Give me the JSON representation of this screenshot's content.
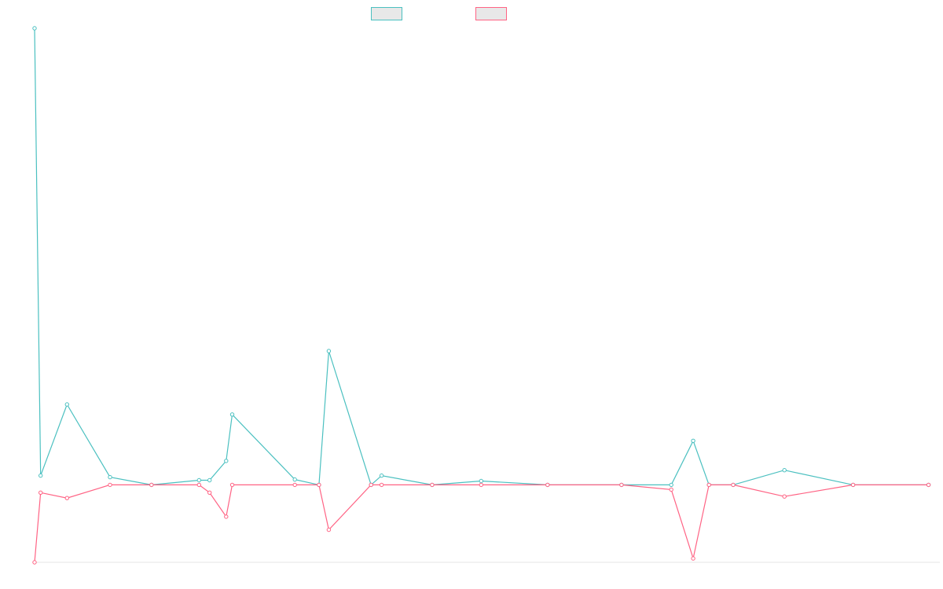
{
  "chart_data": {
    "type": "line",
    "title": "",
    "xlabel": "",
    "ylabel": "",
    "ylim": [
      -100,
      590
    ],
    "xlim": [
      0,
      120
    ],
    "grid": false,
    "legend": {
      "placement": "top-center",
      "labels": [
        "",
        ""
      ]
    },
    "x": [
      0,
      0.8,
      4.3,
      10.0,
      15.5,
      21.8,
      23.2,
      25.4,
      26.2,
      34.5,
      37.7,
      39.0,
      44.6,
      46.0,
      52.7,
      59.2,
      68.0,
      77.8,
      84.4,
      87.3,
      89.4,
      92.6,
      99.4,
      108.5,
      118.5
    ],
    "series": [
      {
        "color": "#4bc0c0",
        "values": [
          590,
          12,
          104,
          10,
          0,
          6,
          6,
          31,
          91,
          7,
          0,
          173,
          0,
          12,
          0,
          5,
          0,
          0,
          0,
          57,
          0,
          0,
          19,
          0,
          0
        ]
      },
      {
        "color": "#ff6384",
        "values": [
          -100,
          -10,
          -17,
          0,
          0,
          0,
          -10,
          -41,
          0,
          0,
          0,
          -58,
          0,
          0,
          0,
          0,
          0,
          0,
          -6,
          -95,
          0,
          0,
          -15,
          0,
          0
        ]
      }
    ],
    "baseline": 0
  }
}
